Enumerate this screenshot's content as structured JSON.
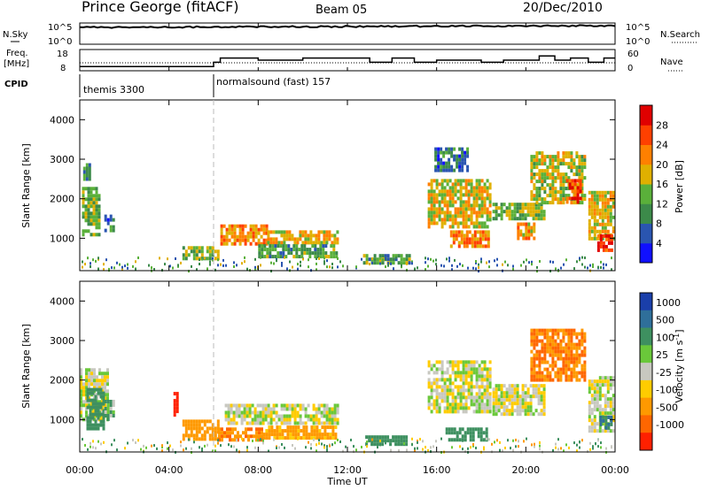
{
  "header": {
    "radar": "Prince George (fitACF)",
    "beam": "Beam 05",
    "date": "20/Dec/2010"
  },
  "noise_panel": {
    "left_label": "N.Sky",
    "right_label": "N.Search",
    "y_ticks_left": [
      "10^5",
      "10^0"
    ],
    "y_ticks_right": [
      "10^5",
      "10^0"
    ]
  },
  "freq_panel": {
    "left_label_line1": "Freq.",
    "left_label_line2": "[MHz]",
    "right_label": "Nave",
    "y_ticks_left": [
      "18",
      "8"
    ],
    "y_ticks_right": [
      "60",
      "0"
    ]
  },
  "cpid": {
    "label": "CPID",
    "segments": [
      {
        "name": "themis 3300",
        "start_hour": 0
      },
      {
        "name": "normalsound (fast) 157",
        "start_hour": 6
      }
    ]
  },
  "axes": {
    "ylabel": "Slant Range [km]",
    "xlabel": "Time UT",
    "y_ticks": [
      "1000",
      "2000",
      "3000",
      "4000"
    ],
    "x_ticks": [
      "00:00",
      "04:00",
      "08:00",
      "12:00",
      "16:00",
      "20:00",
      "00:00"
    ]
  },
  "power_colorbar": {
    "label": "Power [dB]",
    "ticks": [
      "4",
      "8",
      "12",
      "16",
      "20",
      "24",
      "28"
    ],
    "colors": [
      "#1010ff",
      "#2a55b0",
      "#3c8a4a",
      "#5ab03a",
      "#e0b000",
      "#ff8000",
      "#ff4000",
      "#e00000"
    ]
  },
  "velocity_colorbar": {
    "label": "Velocity [m s",
    "label_sup": "-1",
    "label_end": "]",
    "ticks": [
      "1000",
      "500",
      "100",
      "25",
      "-25",
      "-100",
      "-500",
      "-1000"
    ],
    "colors": [
      "#1a3faa",
      "#2f6f9a",
      "#3e9060",
      "#6ac83a",
      "#c8c8c0",
      "#ffcc00",
      "#ff9900",
      "#ff6600",
      "#ff2000"
    ]
  },
  "chart_data": {
    "type": "heatmap",
    "x_unit": "hours UT",
    "x_range": [
      0,
      24
    ],
    "y_range_km": [
      180,
      4500
    ],
    "panels": [
      "power",
      "velocity"
    ],
    "power_echo_regions": [
      {
        "t0": 0.1,
        "t1": 0.9,
        "r0": 1100,
        "r1": 2300,
        "level_db": 14
      },
      {
        "t0": 0.15,
        "t1": 0.5,
        "r0": 2500,
        "r1": 2900,
        "level_db": 10
      },
      {
        "t0": 1.1,
        "t1": 1.5,
        "r0": 1200,
        "r1": 1600,
        "level_db": 8
      },
      {
        "t0": 4.6,
        "t1": 6.2,
        "r0": 500,
        "r1": 800,
        "level_db": 15
      },
      {
        "t0": 6.3,
        "t1": 8.4,
        "r0": 900,
        "r1": 1350,
        "level_db": 22
      },
      {
        "t0": 8.4,
        "t1": 11.6,
        "r0": 850,
        "r1": 1200,
        "level_db": 18
      },
      {
        "t0": 8.0,
        "t1": 11.5,
        "r0": 550,
        "r1": 850,
        "level_db": 12
      },
      {
        "t0": 12.7,
        "t1": 14.8,
        "r0": 350,
        "r1": 600,
        "level_db": 12
      },
      {
        "t0": 15.6,
        "t1": 18.4,
        "r0": 1300,
        "r1": 2500,
        "level_db": 18
      },
      {
        "t0": 16.6,
        "t1": 18.3,
        "r0": 800,
        "r1": 1200,
        "level_db": 22
      },
      {
        "t0": 15.9,
        "t1": 17.4,
        "r0": 2750,
        "r1": 3300,
        "level_db": 8
      },
      {
        "t0": 18.5,
        "t1": 20.8,
        "r0": 1500,
        "r1": 1900,
        "level_db": 14
      },
      {
        "t0": 19.6,
        "t1": 20.4,
        "r0": 1000,
        "r1": 1400,
        "level_db": 20
      },
      {
        "t0": 20.2,
        "t1": 22.6,
        "r0": 1900,
        "r1": 3200,
        "level_db": 16
      },
      {
        "t0": 21.8,
        "t1": 22.4,
        "r0": 1900,
        "r1": 2500,
        "level_db": 26
      },
      {
        "t0": 22.8,
        "t1": 23.9,
        "r0": 1000,
        "r1": 2200,
        "level_db": 18
      },
      {
        "t0": 23.2,
        "t1": 23.8,
        "r0": 700,
        "r1": 1100,
        "level_db": 28
      }
    ],
    "velocity_echo_regions": [
      {
        "t0": 0.0,
        "t1": 1.3,
        "r0": 1000,
        "r1": 2300,
        "vel": 0
      },
      {
        "t0": 0.3,
        "t1": 1.1,
        "r0": 800,
        "r1": 1800,
        "vel": 150
      },
      {
        "t0": 1.1,
        "t1": 1.5,
        "r0": 1000,
        "r1": 1500,
        "vel": 60
      },
      {
        "t0": 4.2,
        "t1": 4.4,
        "r0": 1100,
        "r1": 1700,
        "vel": -1000
      },
      {
        "t0": 4.6,
        "t1": 6.2,
        "r0": 500,
        "r1": 1000,
        "vel": -200
      },
      {
        "t0": 6.2,
        "t1": 8.2,
        "r0": 500,
        "r1": 800,
        "vel": -300
      },
      {
        "t0": 6.5,
        "t1": 11.6,
        "r0": 900,
        "r1": 1400,
        "vel": 0
      },
      {
        "t0": 8.2,
        "t1": 11.5,
        "r0": 550,
        "r1": 850,
        "vel": -100
      },
      {
        "t0": 12.8,
        "t1": 14.6,
        "r0": 350,
        "r1": 600,
        "vel": 150
      },
      {
        "t0": 15.6,
        "t1": 18.4,
        "r0": 1200,
        "r1": 2500,
        "vel": 0
      },
      {
        "t0": 16.4,
        "t1": 18.2,
        "r0": 500,
        "r1": 800,
        "vel": 150
      },
      {
        "t0": 18.5,
        "t1": 20.8,
        "r0": 1100,
        "r1": 1900,
        "vel": 0
      },
      {
        "t0": 20.2,
        "t1": 22.6,
        "r0": 2000,
        "r1": 3300,
        "vel": -300
      },
      {
        "t0": 22.8,
        "t1": 23.9,
        "r0": 700,
        "r1": 2100,
        "vel": 0
      },
      {
        "t0": 23.3,
        "t1": 23.8,
        "r0": 800,
        "r1": 1100,
        "vel": 300
      }
    ],
    "freq_steps": [
      {
        "t0": 0.0,
        "t1": 6.0,
        "freq": 10
      },
      {
        "t0": 6.0,
        "t1": 6.3,
        "freq": 12
      },
      {
        "t0": 6.3,
        "t1": 8.0,
        "freq": 14
      },
      {
        "t0": 8.0,
        "t1": 10.0,
        "freq": 13
      },
      {
        "t0": 10.0,
        "t1": 13.0,
        "freq": 14
      },
      {
        "t0": 13.0,
        "t1": 14.0,
        "freq": 12
      },
      {
        "t0": 14.0,
        "t1": 15.0,
        "freq": 14
      },
      {
        "t0": 15.0,
        "t1": 16.0,
        "freq": 12
      },
      {
        "t0": 16.0,
        "t1": 18.0,
        "freq": 13
      },
      {
        "t0": 18.0,
        "t1": 19.0,
        "freq": 12
      },
      {
        "t0": 19.0,
        "t1": 20.6,
        "freq": 13
      },
      {
        "t0": 20.6,
        "t1": 21.3,
        "freq": 15
      },
      {
        "t0": 21.3,
        "t1": 22.0,
        "freq": 13
      },
      {
        "t0": 22.0,
        "t1": 22.8,
        "freq": 14
      },
      {
        "t0": 22.8,
        "t1": 23.5,
        "freq": 12
      },
      {
        "t0": 23.5,
        "t1": 24.0,
        "freq": 14
      }
    ]
  }
}
